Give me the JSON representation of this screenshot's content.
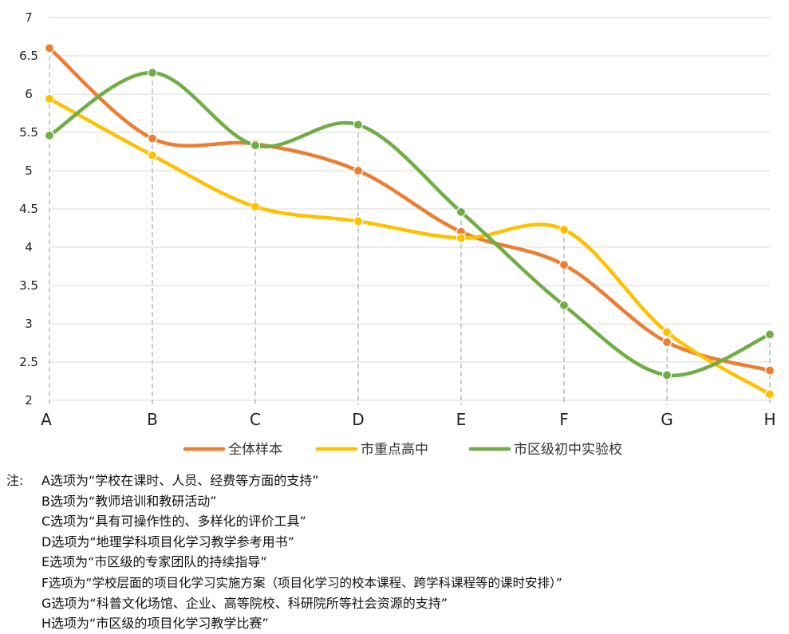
{
  "chart_data": {
    "type": "line",
    "categories": [
      "A",
      "B",
      "C",
      "D",
      "E",
      "F",
      "G",
      "H"
    ],
    "series": [
      {
        "name": "全体样本",
        "color": "#ED7D31",
        "values": [
          6.6,
          5.42,
          5.35,
          5.0,
          4.2,
          3.77,
          2.76,
          2.39
        ]
      },
      {
        "name": "市重点高中",
        "color": "#FFC000",
        "values": [
          5.94,
          5.2,
          4.53,
          4.34,
          4.12,
          4.23,
          2.89,
          2.08
        ]
      },
      {
        "name": "市区级初中实验校",
        "color": "#70AD47",
        "values": [
          5.46,
          6.28,
          5.33,
          5.6,
          4.46,
          3.24,
          2.33,
          2.86
        ]
      }
    ],
    "ylim": [
      2,
      7
    ],
    "yticks": [
      "2",
      "2.5",
      "3",
      "3.5",
      "4",
      "4.5",
      "5",
      "5.5",
      "6",
      "6.5",
      "7"
    ],
    "grid": true,
    "legend_position": "bottom",
    "smooth": true
  },
  "notes": {
    "prefix": "注:",
    "lines": [
      "A选项为“学校在课时、人员、经费等方面的支持”",
      "B选项为“教师培训和教研活动”",
      "C选项为“具有可操作性的、多样化的评价工具”",
      "D选项为“地理学科项目化学习教学参考用书”",
      "E选项为“市区级的专家团队的持续指导”",
      "F选项为“学校层面的项目化学习实施方案（项目化学习的校本课程、跨学科课程等的课时安排）”",
      "G选项为“科普文化场馆、企业、高等院校、科研院所等社会资源的支持”",
      "H选项为“市区级的项目化学习教学比赛”"
    ]
  }
}
